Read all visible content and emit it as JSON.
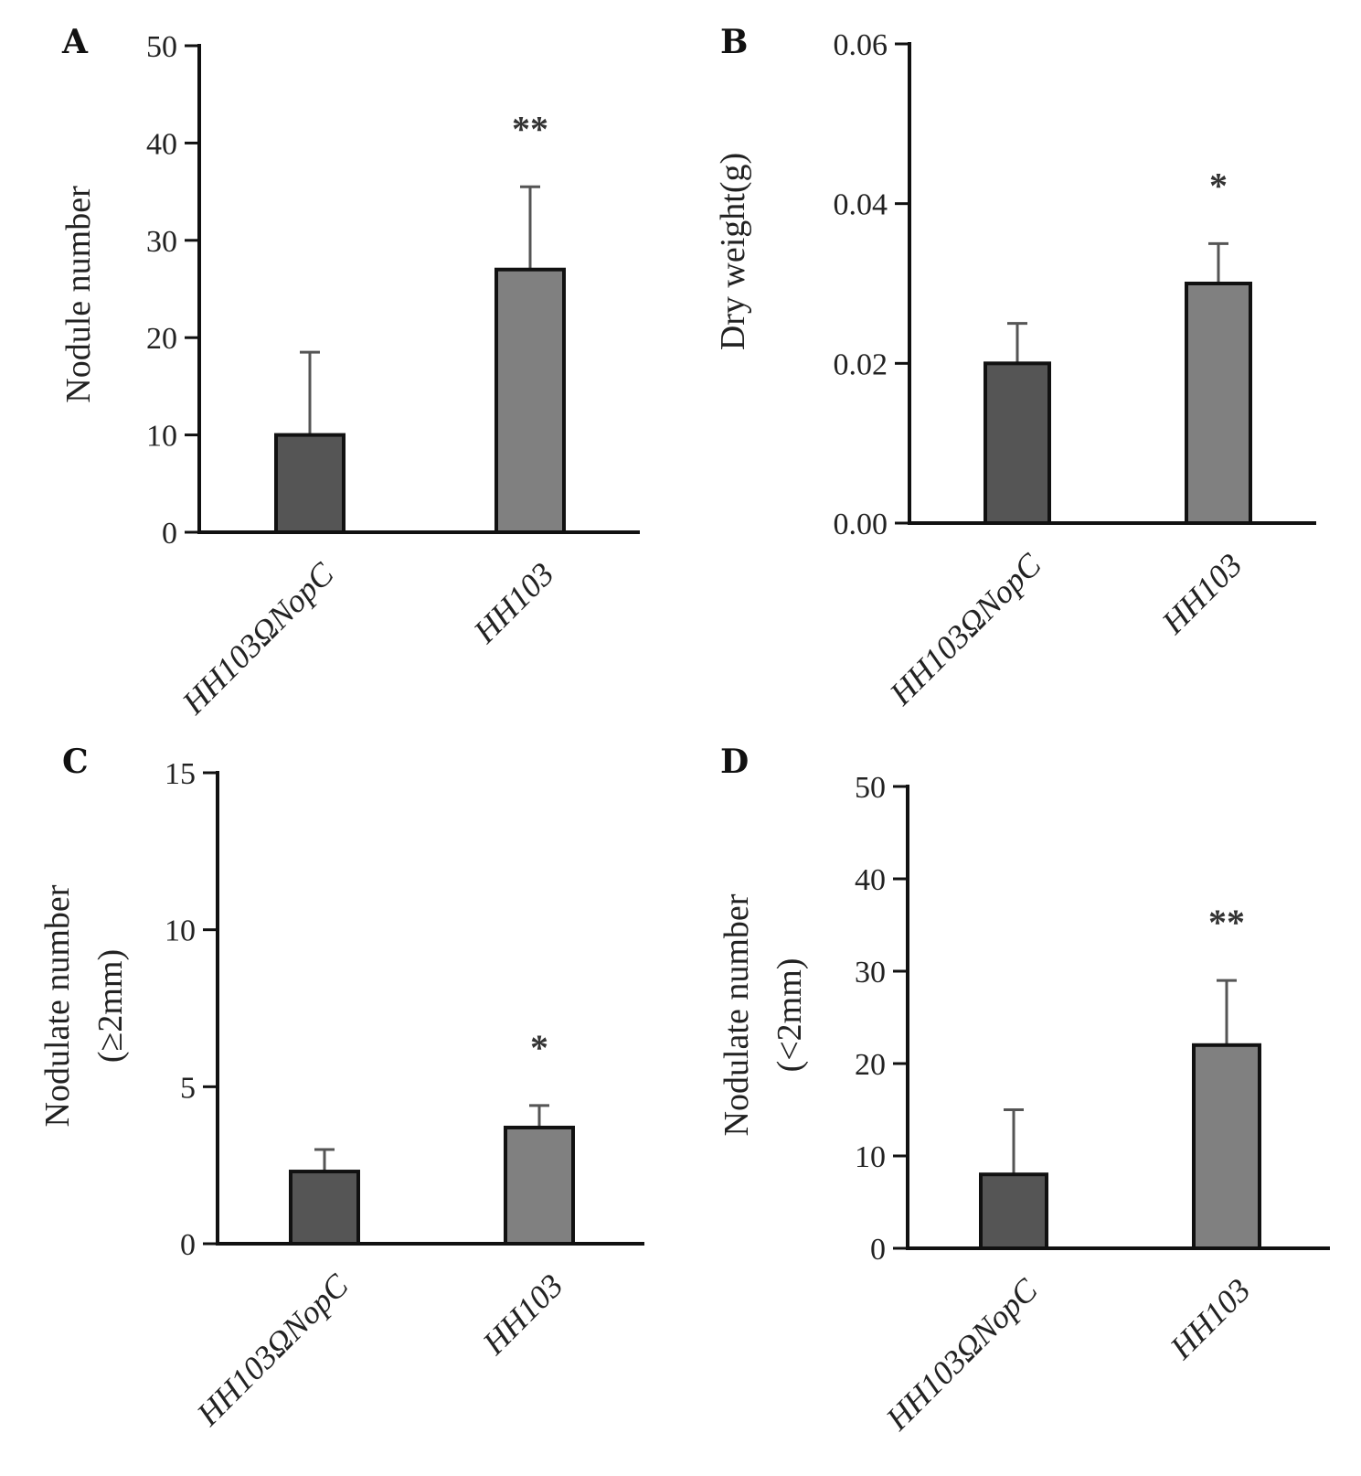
{
  "colors": {
    "bar_dark": "#555555",
    "bar_light": "#808080",
    "axis": "#111111",
    "error": "#555555"
  },
  "chart_data": [
    {
      "type": "bar",
      "panel": "A",
      "categories": [
        "HH103ΩNopC",
        "HH103"
      ],
      "values": [
        10,
        27
      ],
      "errors": [
        8.5,
        8.5
      ],
      "significance": [
        "",
        "**"
      ],
      "ylabel": "Nodule number",
      "ylim": [
        0,
        50
      ],
      "yticks": [
        0,
        10,
        20,
        30,
        40,
        50
      ],
      "ytick_labels": [
        "0",
        "10",
        "20",
        "30",
        "40",
        "50"
      ]
    },
    {
      "type": "bar",
      "panel": "B",
      "categories": [
        "HH103ΩNopC",
        "HH103"
      ],
      "values": [
        0.02,
        0.03
      ],
      "errors": [
        0.005,
        0.005
      ],
      "significance": [
        "",
        "*"
      ],
      "ylabel": "Dry weight(g)",
      "ylim": [
        0,
        0.06
      ],
      "yticks": [
        0,
        0.02,
        0.04,
        0.06
      ],
      "ytick_labels": [
        "0.00",
        "0.02",
        "0.04",
        "0.06"
      ]
    },
    {
      "type": "bar",
      "panel": "C",
      "categories": [
        "HH103ΩNopC",
        "HH103"
      ],
      "values": [
        2.3,
        3.7
      ],
      "errors": [
        0.7,
        0.7
      ],
      "significance": [
        "",
        "*"
      ],
      "ylabel": "Nodulate number",
      "ylabel2": "(≥2mm)",
      "ylim": [
        0,
        15
      ],
      "yticks": [
        0,
        5,
        10,
        15
      ],
      "ytick_labels": [
        "0",
        "5",
        "10",
        "15"
      ]
    },
    {
      "type": "bar",
      "panel": "D",
      "categories": [
        "HH103ΩNopC",
        "HH103"
      ],
      "values": [
        8,
        22
      ],
      "errors": [
        7,
        7
      ],
      "significance": [
        "",
        "**"
      ],
      "ylabel": "Nodulate number",
      "ylabel2": "(<2mm)",
      "ylim": [
        0,
        50
      ],
      "yticks": [
        0,
        10,
        20,
        30,
        40,
        50
      ],
      "ytick_labels": [
        "0",
        "10",
        "20",
        "30",
        "40",
        "50"
      ]
    }
  ]
}
